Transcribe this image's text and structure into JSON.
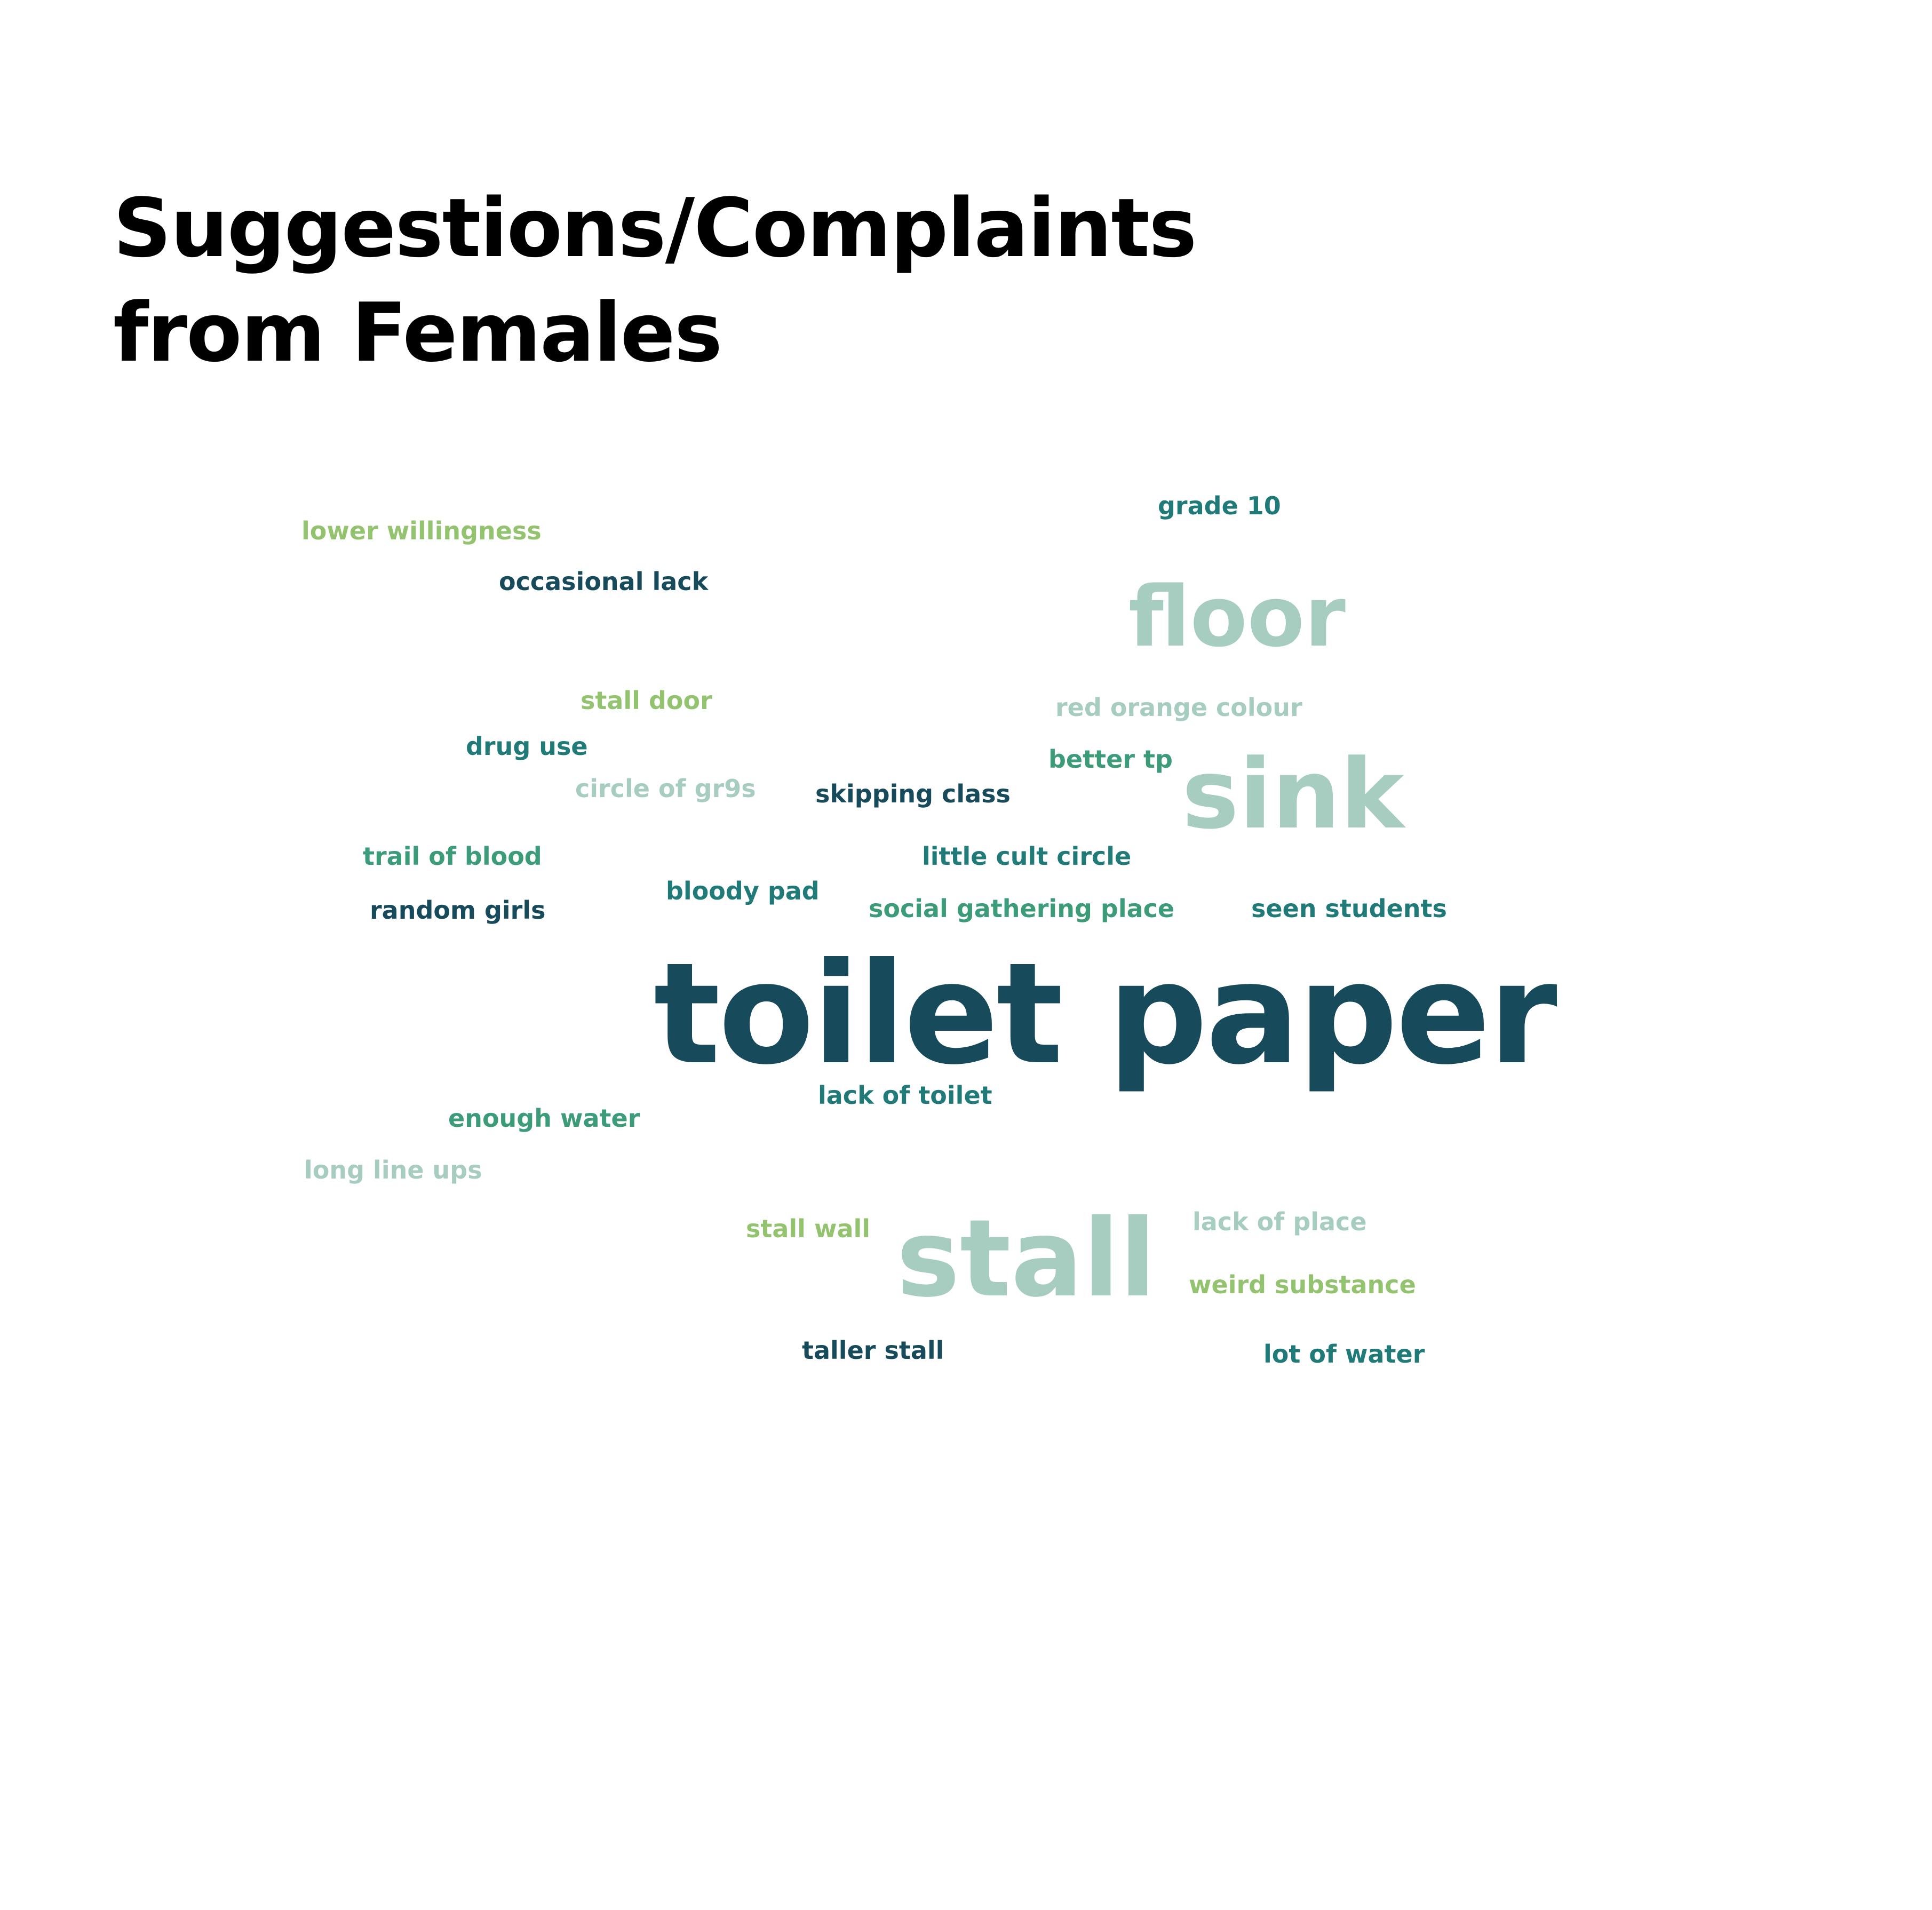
{
  "title_lines": [
    "Suggestions/Complaints",
    "from Females"
  ],
  "palette": {
    "dark_teal": "#174a5a",
    "teal": "#1f7a78",
    "green": "#3c9b78",
    "light_green": "#93c36f",
    "mint": "#a6cdbf"
  },
  "words": [
    {
      "text": "grade 10",
      "color": "#1f7a78"
    },
    {
      "text": "lower willingness",
      "color": "#93c36f"
    },
    {
      "text": "occasional lack",
      "color": "#174a5a"
    },
    {
      "text": "floor",
      "color": "#a6cdbf"
    },
    {
      "text": "stall door",
      "color": "#93c36f"
    },
    {
      "text": "red orange colour",
      "color": "#a6cdbf"
    },
    {
      "text": "drug use",
      "color": "#1f7a78"
    },
    {
      "text": "better tp",
      "color": "#3c9b78"
    },
    {
      "text": "circle of gr9s",
      "color": "#a6cdbf"
    },
    {
      "text": "skipping class",
      "color": "#174a5a"
    },
    {
      "text": "sink",
      "color": "#a6cdbf"
    },
    {
      "text": "trail of blood",
      "color": "#3c9b78"
    },
    {
      "text": "little cult circle",
      "color": "#1f7a78"
    },
    {
      "text": "bloody pad",
      "color": "#1f7a78"
    },
    {
      "text": "random girls",
      "color": "#174a5a"
    },
    {
      "text": "social gathering place",
      "color": "#3c9b78"
    },
    {
      "text": "seen students",
      "color": "#1f7a78"
    },
    {
      "text": "toilet paper",
      "color": "#174a5a"
    },
    {
      "text": "lack of toilet",
      "color": "#1f7a78"
    },
    {
      "text": "enough water",
      "color": "#3c9b78"
    },
    {
      "text": "long line ups",
      "color": "#a6cdbf"
    },
    {
      "text": "stall wall",
      "color": "#93c36f"
    },
    {
      "text": "stall",
      "color": "#a6cdbf"
    },
    {
      "text": "lack of place",
      "color": "#a6cdbf"
    },
    {
      "text": "weird substance",
      "color": "#93c36f"
    },
    {
      "text": "taller stall",
      "color": "#174a5a"
    },
    {
      "text": "lot of water",
      "color": "#1f7a78"
    }
  ]
}
